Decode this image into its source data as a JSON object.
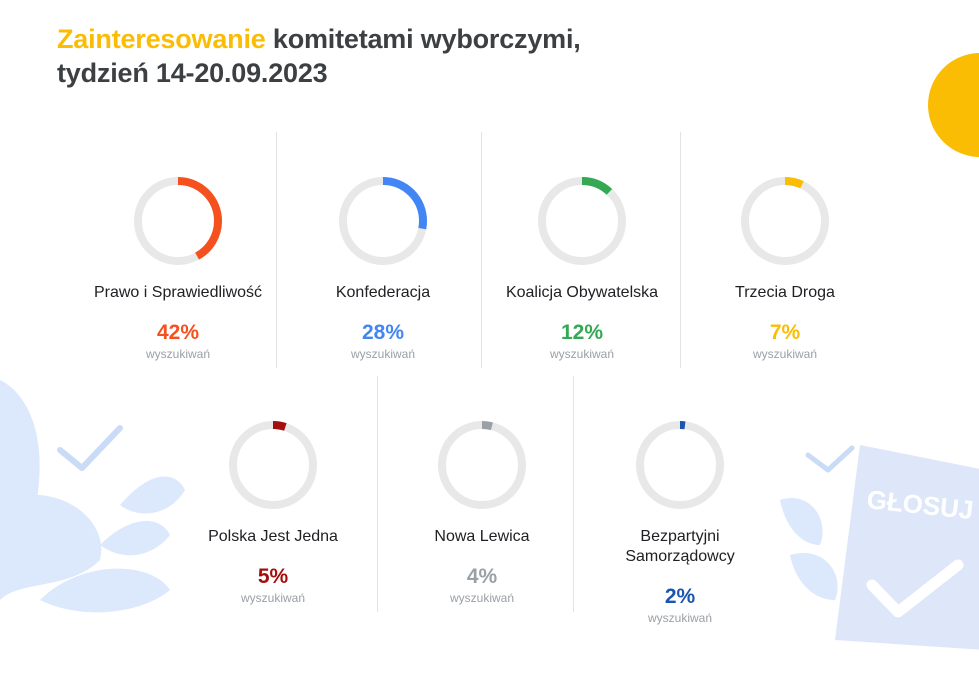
{
  "title": {
    "highlight": "Zainteresowanie",
    "rest": " komitetami wyborczymi,",
    "line2": "tydzień 14-20.09.2023"
  },
  "decoration": {
    "stamp_text": "GŁOSUJ"
  },
  "chart_data": {
    "type": "donut",
    "unit_label": "wyszukiwań",
    "ring_color": "#e8e8e8",
    "items": [
      {
        "name": "Prawo i Sprawiedliwość",
        "value": 42,
        "label": "42%",
        "color": "#f4511e"
      },
      {
        "name": "Konfederacja",
        "value": 28,
        "label": "28%",
        "color": "#4285f4"
      },
      {
        "name": "Koalicja Obywatelska",
        "value": 12,
        "label": "12%",
        "color": "#34a853"
      },
      {
        "name": "Trzecia Droga",
        "value": 7,
        "label": "7%",
        "color": "#fbbc04"
      },
      {
        "name": "Polska Jest Jedna",
        "value": 5,
        "label": "5%",
        "color": "#a50e0e"
      },
      {
        "name": "Nowa Lewica",
        "value": 4,
        "label": "4%",
        "color": "#9aa0a6"
      },
      {
        "name": "Bezpartyjni\nSamorządowcy",
        "value": 2,
        "label": "2%",
        "color": "#1a56b0"
      }
    ]
  }
}
